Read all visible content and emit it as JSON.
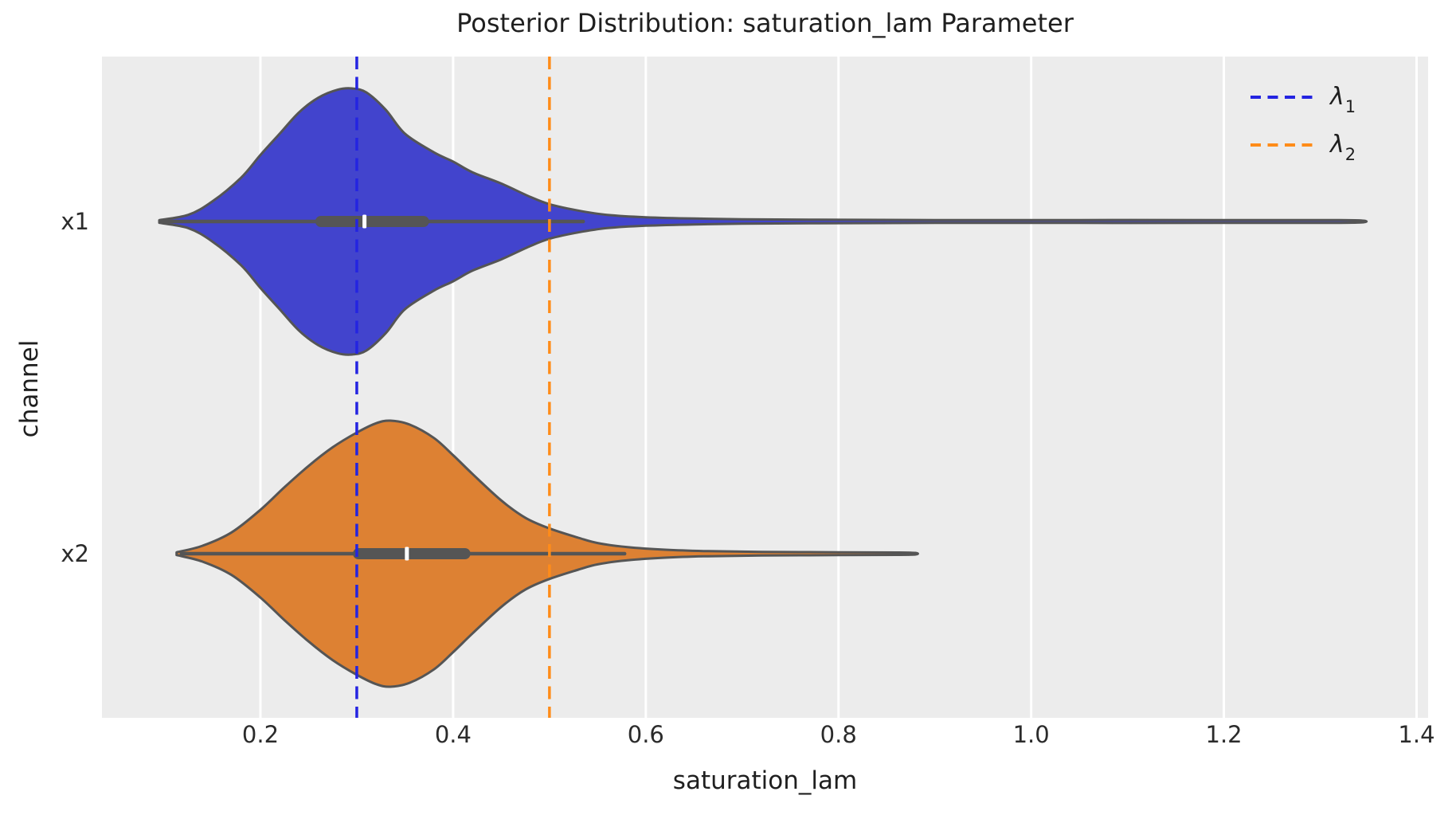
{
  "figure": {
    "title": "Posterior Distribution: saturation_lam Parameter",
    "xlabel": "saturation_lam",
    "ylabel": "channel"
  },
  "legend": {
    "position": "upper-right",
    "items": [
      {
        "symbol": "λ",
        "sub": "1"
      },
      {
        "symbol": "λ",
        "sub": "2"
      }
    ]
  },
  "chart_data": {
    "type": "violin",
    "orientation": "horizontal",
    "title": "Posterior Distribution: saturation_lam Parameter",
    "xlabel": "saturation_lam",
    "ylabel": "channel",
    "grid": "vertical-white-on-gray",
    "plot_bg": "#ececec",
    "grid_color": "#ffffff",
    "xlim": [
      0.0355,
      1.412
    ],
    "xticks": [
      0.2,
      0.4,
      0.6,
      0.8,
      1.0,
      1.2,
      1.4
    ],
    "xtick_labels": [
      "0.2",
      "0.4",
      "0.6",
      "0.8",
      "1.0",
      "1.2",
      "1.4"
    ],
    "categories": [
      "x1",
      "x2"
    ],
    "series": [
      {
        "name": "x1",
        "fill": "#4244cd",
        "edge": "#555555",
        "stats": {
          "median": 0.308,
          "q1": 0.257,
          "q3": 0.375,
          "whisker_low": 0.098,
          "whisker_high": 0.535,
          "min": 0.095,
          "max": 1.345
        },
        "density": [
          [
            0.095,
            0.01
          ],
          [
            0.125,
            0.05
          ],
          [
            0.15,
            0.15
          ],
          [
            0.18,
            0.33
          ],
          [
            0.2,
            0.5
          ],
          [
            0.22,
            0.66
          ],
          [
            0.24,
            0.82
          ],
          [
            0.26,
            0.93
          ],
          [
            0.28,
            0.99
          ],
          [
            0.295,
            1.0
          ],
          [
            0.31,
            0.97
          ],
          [
            0.33,
            0.84
          ],
          [
            0.35,
            0.66
          ],
          [
            0.38,
            0.52
          ],
          [
            0.4,
            0.45
          ],
          [
            0.42,
            0.37
          ],
          [
            0.45,
            0.285
          ],
          [
            0.48,
            0.185
          ],
          [
            0.5,
            0.13
          ],
          [
            0.53,
            0.082
          ],
          [
            0.56,
            0.05
          ],
          [
            0.6,
            0.032
          ],
          [
            0.65,
            0.022
          ],
          [
            0.7,
            0.017
          ],
          [
            0.78,
            0.013
          ],
          [
            0.9,
            0.011
          ],
          [
            1.05,
            0.011
          ],
          [
            1.2,
            0.011
          ],
          [
            1.32,
            0.01
          ],
          [
            1.345,
            0.006
          ]
        ]
      },
      {
        "name": "x2",
        "fill": "#dd8133",
        "edge": "#555555",
        "stats": {
          "median": 0.352,
          "q1": 0.296,
          "q3": 0.418,
          "whisker_low": 0.118,
          "whisker_high": 0.578,
          "min": 0.113,
          "max": 0.88
        },
        "density": [
          [
            0.113,
            0.01
          ],
          [
            0.14,
            0.06
          ],
          [
            0.17,
            0.16
          ],
          [
            0.2,
            0.33
          ],
          [
            0.225,
            0.5
          ],
          [
            0.25,
            0.66
          ],
          [
            0.275,
            0.8
          ],
          [
            0.3,
            0.91
          ],
          [
            0.32,
            0.98
          ],
          [
            0.335,
            1.0
          ],
          [
            0.355,
            0.97
          ],
          [
            0.38,
            0.87
          ],
          [
            0.4,
            0.74
          ],
          [
            0.42,
            0.6
          ],
          [
            0.45,
            0.4
          ],
          [
            0.475,
            0.27
          ],
          [
            0.5,
            0.19
          ],
          [
            0.53,
            0.12
          ],
          [
            0.55,
            0.08
          ],
          [
            0.58,
            0.05
          ],
          [
            0.62,
            0.03
          ],
          [
            0.66,
            0.02
          ],
          [
            0.72,
            0.014
          ],
          [
            0.8,
            0.011
          ],
          [
            0.86,
            0.009
          ],
          [
            0.88,
            0.006
          ]
        ]
      }
    ],
    "ref_lines": [
      {
        "label": "λ1",
        "value": 0.3,
        "color": "#2424e1",
        "style": "dashed"
      },
      {
        "label": "λ2",
        "value": 0.5,
        "color": "#ff8c19",
        "style": "dashed"
      }
    ],
    "inner_box": {
      "box_color": "#555555",
      "median_color": "#ffffff"
    }
  }
}
